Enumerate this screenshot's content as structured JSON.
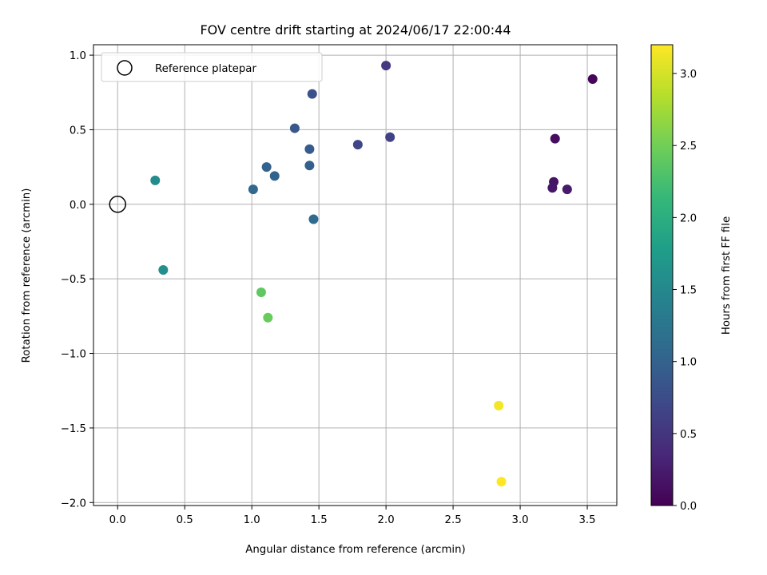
{
  "chart_data": {
    "type": "scatter",
    "title": "FOV centre drift starting at 2024/06/17 22:00:44",
    "xlabel": "Angular distance from reference (arcmin)",
    "ylabel": "Rotation from reference (arcmin)",
    "xlim": [
      -0.18,
      3.72
    ],
    "ylim": [
      -2.02,
      1.07
    ],
    "xticks": [
      0.0,
      0.5,
      1.0,
      1.5,
      2.0,
      2.5,
      3.0,
      3.5
    ],
    "xtick_labels": [
      "0.0",
      "0.5",
      "1.0",
      "1.5",
      "2.0",
      "2.5",
      "3.0",
      "3.5"
    ],
    "yticks": [
      1.0,
      0.5,
      0.0,
      -0.5,
      -1.0,
      -1.5,
      -2.0
    ],
    "ytick_labels": [
      "1.0",
      "0.5",
      "0.0",
      "−0.5",
      "−1.0",
      "−1.5",
      "−2.0"
    ],
    "grid": true,
    "legend": {
      "placement": "top-left",
      "entries": [
        "Reference platepar"
      ]
    },
    "reference_point": {
      "x": 0.0,
      "y": 0.0
    },
    "colorbar": {
      "label": "Hours from first FF file",
      "colormap": "viridis",
      "range": [
        0.0,
        3.2
      ],
      "ticks": [
        0.0,
        0.5,
        1.0,
        1.5,
        2.0,
        2.5,
        3.0
      ],
      "tick_labels": [
        "0.0",
        "0.5",
        "1.0",
        "1.5",
        "2.0",
        "2.5",
        "3.0"
      ]
    },
    "points": [
      {
        "x": 3.54,
        "y": 0.84,
        "hours": 0.05
      },
      {
        "x": 3.26,
        "y": 0.44,
        "hours": 0.12
      },
      {
        "x": 3.25,
        "y": 0.15,
        "hours": 0.17
      },
      {
        "x": 3.24,
        "y": 0.11,
        "hours": 0.2
      },
      {
        "x": 3.35,
        "y": 0.1,
        "hours": 0.23
      },
      {
        "x": 2.0,
        "y": 0.93,
        "hours": 0.55
      },
      {
        "x": 2.03,
        "y": 0.45,
        "hours": 0.62
      },
      {
        "x": 1.79,
        "y": 0.4,
        "hours": 0.68
      },
      {
        "x": 1.45,
        "y": 0.74,
        "hours": 0.8
      },
      {
        "x": 1.32,
        "y": 0.51,
        "hours": 0.88
      },
      {
        "x": 1.43,
        "y": 0.37,
        "hours": 0.92
      },
      {
        "x": 1.43,
        "y": 0.26,
        "hours": 0.97
      },
      {
        "x": 1.11,
        "y": 0.25,
        "hours": 1.0
      },
      {
        "x": 1.17,
        "y": 0.19,
        "hours": 1.03
      },
      {
        "x": 1.01,
        "y": 0.1,
        "hours": 1.05
      },
      {
        "x": 1.46,
        "y": -0.1,
        "hours": 1.1
      },
      {
        "x": 0.28,
        "y": 0.16,
        "hours": 1.55
      },
      {
        "x": 0.34,
        "y": -0.44,
        "hours": 1.6
      },
      {
        "x": 1.07,
        "y": -0.59,
        "hours": 2.4
      },
      {
        "x": 1.12,
        "y": -0.76,
        "hours": 2.45
      },
      {
        "x": 2.84,
        "y": -1.35,
        "hours": 3.15
      },
      {
        "x": 2.86,
        "y": -1.86,
        "hours": 3.2
      }
    ]
  }
}
